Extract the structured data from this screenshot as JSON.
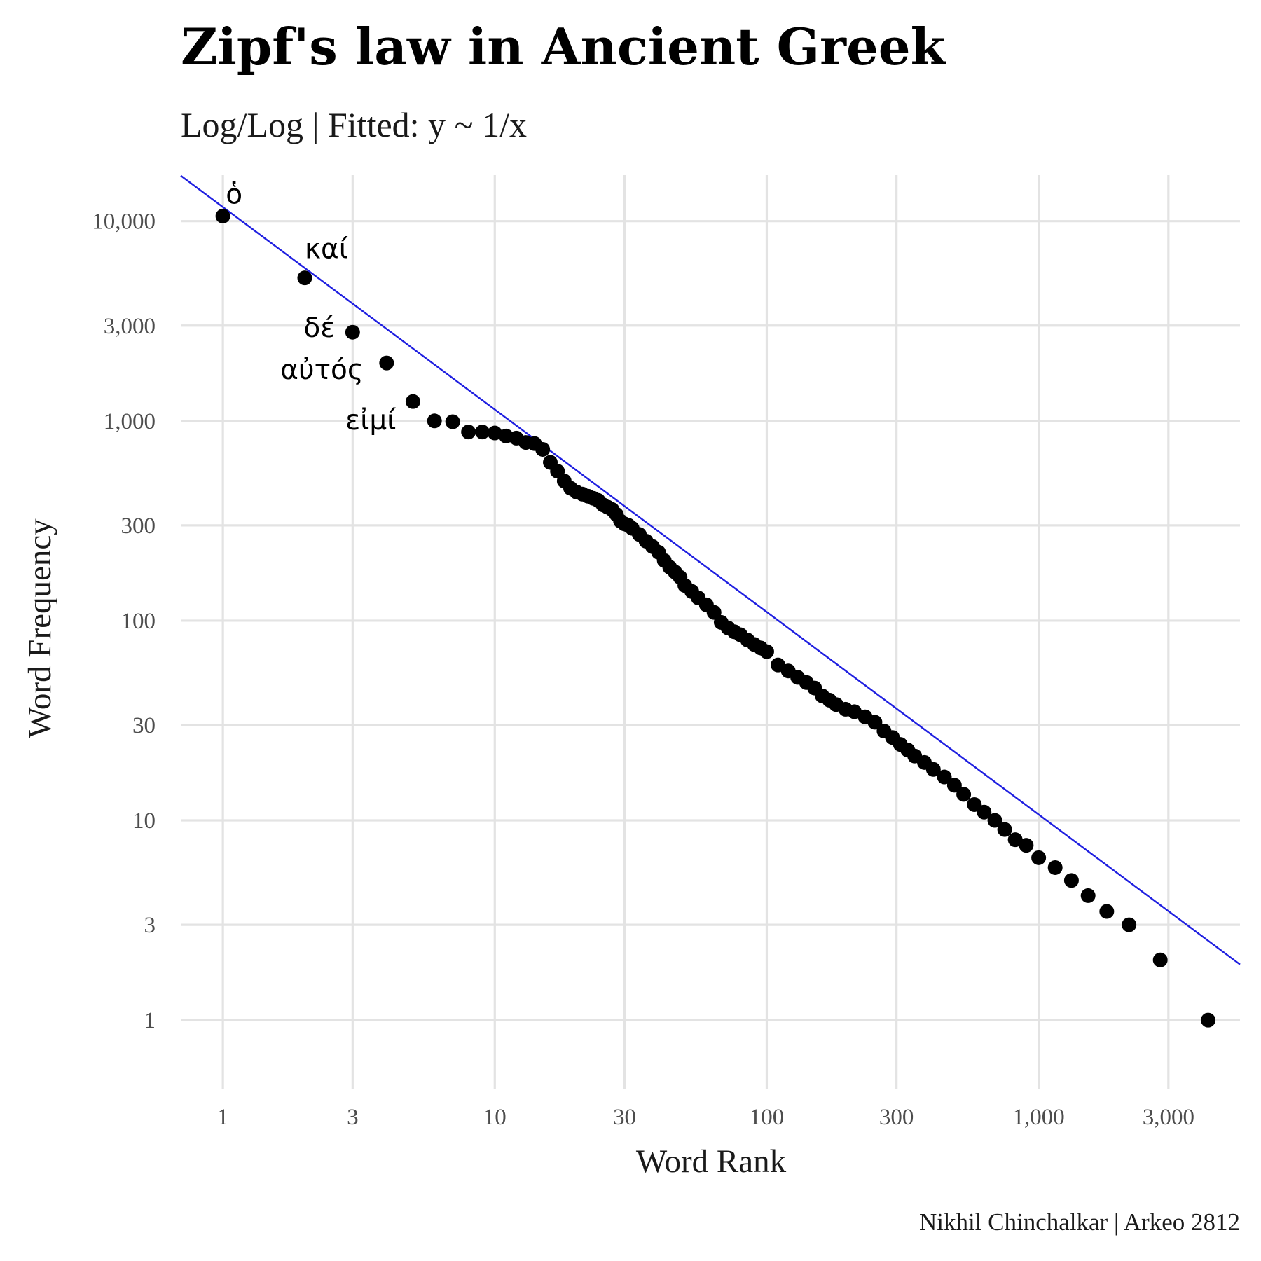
{
  "chart_data": {
    "type": "scatter",
    "title": "Zipf's law in Ancient Greek",
    "subtitle": "Log/Log | Fitted: y ~ 1/x",
    "xlabel": "Word Rank",
    "ylabel": "Word Frequency",
    "caption": "Nikhil Chinchalkar | Arkeo 2812",
    "x_scale": "log10",
    "y_scale": "log10",
    "xlim": [
      0.7,
      5500
    ],
    "ylim": [
      0.45,
      17000
    ],
    "grid": true,
    "legend": "none",
    "x_ticks": [
      1,
      3,
      10,
      30,
      100,
      300,
      1000,
      3000
    ],
    "x_tick_labels": [
      "1",
      "3",
      "10",
      "30",
      "100",
      "300",
      "1,000",
      "3,000"
    ],
    "y_ticks": [
      1,
      3,
      10,
      30,
      100,
      300,
      1000,
      3000,
      10000
    ],
    "y_tick_labels": [
      "1",
      "3",
      "10",
      "30",
      "100",
      "300",
      "1,000",
      "3,000",
      "10,000"
    ],
    "fit": {
      "label": "y ~ 1/x",
      "color": "#1f1fe0",
      "x": [
        0.7,
        5500
      ],
      "y": [
        16900,
        1.9
      ]
    },
    "point_color": "#000000",
    "annotations": [
      {
        "text": "ὁ",
        "x": 1,
        "y": 10600
      },
      {
        "text": "καί",
        "x": 2,
        "y": 5200
      },
      {
        "text": "δέ",
        "x": 3,
        "y": 2780
      },
      {
        "text": "αὐτός",
        "x": 4,
        "y": 1950
      },
      {
        "text": "εἰμί",
        "x": 5,
        "y": 1250
      }
    ],
    "series": [
      {
        "x": [
          1,
          2,
          3,
          4,
          5,
          6,
          7,
          8,
          9,
          10,
          11,
          12,
          13,
          14,
          15,
          16,
          17,
          18,
          19,
          20,
          21,
          22,
          23,
          24,
          25,
          26,
          27,
          28,
          29,
          30,
          31,
          32,
          34,
          36,
          38,
          40,
          42,
          44,
          46,
          48,
          50,
          53,
          56,
          60,
          64,
          68,
          72,
          76,
          80,
          85,
          90,
          95,
          100,
          110,
          120,
          130,
          140,
          150,
          160,
          170,
          180,
          195,
          210,
          230,
          250,
          270,
          290,
          310,
          330,
          350,
          380,
          410,
          450,
          490,
          530,
          580,
          630,
          690,
          750,
          820,
          900,
          1000,
          1150,
          1320,
          1520,
          1780,
          2150,
          2800,
          4200
        ],
        "y": [
          10600,
          5200,
          2780,
          1950,
          1250,
          1000,
          990,
          880,
          880,
          870,
          840,
          820,
          780,
          770,
          720,
          620,
          560,
          500,
          460,
          440,
          430,
          420,
          410,
          400,
          380,
          370,
          360,
          340,
          315,
          305,
          300,
          290,
          270,
          250,
          235,
          220,
          200,
          185,
          175,
          165,
          150,
          140,
          130,
          120,
          110,
          98,
          92,
          88,
          85,
          80,
          76,
          73,
          70,
          60,
          56,
          52,
          49,
          46,
          42,
          40,
          38,
          36,
          35,
          33,
          31,
          28,
          26,
          24,
          22.5,
          21,
          19.5,
          18,
          16.5,
          15,
          13.5,
          12,
          11,
          10,
          9,
          8,
          7.5,
          6.5,
          5.8,
          5.0,
          4.2,
          3.5,
          3.0,
          2.0,
          1.0
        ]
      }
    ]
  }
}
